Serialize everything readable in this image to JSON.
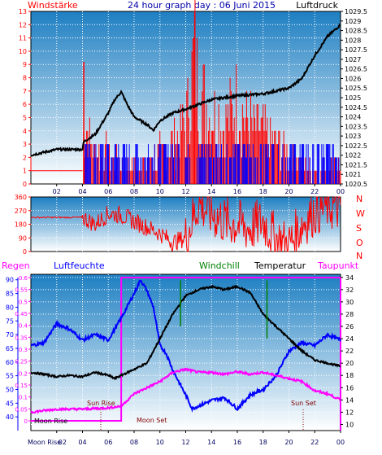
{
  "header": {
    "left_label": "Windstärke",
    "title": "24 hour graph day : 06 Juni 2015",
    "right_label": "Luftdruck"
  },
  "colors": {
    "wind": "#ff0000",
    "pressure": "#000000",
    "humidity": "#0000ff",
    "windchill": "#008000",
    "temperature": "#000000",
    "dewpoint": "#ff00ff",
    "rain": "#ff00ff",
    "frame": "#000000",
    "gradient_top": "#1e7fc2",
    "gradient_bottom": "#ffffff"
  },
  "panel1": {
    "time_ticks": [
      "02",
      "04",
      "06",
      "08",
      "10",
      "12",
      "14",
      "16",
      "18",
      "20",
      "22",
      "00"
    ],
    "left_ticks": [
      "0",
      "1",
      "2",
      "3",
      "4",
      "5",
      "6",
      "7",
      "8",
      "9",
      "10",
      "11",
      "12",
      "13"
    ],
    "right_ticks": [
      "1020.5",
      "1021",
      "1021.5",
      "1022",
      "1022.5",
      "1023",
      "1023.5",
      "1024",
      "1024.5",
      "1025",
      "1025.5",
      "1026",
      "1026.5",
      "1027",
      "1027.5",
      "1028",
      "1028.5",
      "1029",
      "1029.5"
    ]
  },
  "panel2": {
    "left_ticks": [
      "0",
      "90",
      "180",
      "270",
      "360"
    ],
    "right_letters": [
      "N",
      "W",
      "S",
      "O",
      "N"
    ]
  },
  "panel3": {
    "labels": {
      "rain": "Regen",
      "humidity": "Luftfeuchte",
      "windchill": "Windchill",
      "temperature": "Temperatur",
      "dewpoint": "Taupunkt"
    },
    "humidity_ticks": [
      "40",
      "45",
      "50",
      "55",
      "60",
      "65",
      "70",
      "75",
      "80",
      "85",
      "90"
    ],
    "rain_ticks": [
      "0",
      "0.05",
      "0.1",
      "0.15",
      "0.2",
      "0.25",
      "0.3",
      "0.35",
      "0.4",
      "0.45",
      "0.5",
      "0.55",
      "0.6"
    ],
    "temp_ticks": [
      "10",
      "12",
      "14",
      "16",
      "18",
      "20",
      "22",
      "24",
      "26",
      "28",
      "30",
      "32",
      "34"
    ],
    "time_ticks": [
      "02",
      "04",
      "06",
      "08",
      "10",
      "12",
      "14",
      "16",
      "18",
      "20",
      "22",
      "00"
    ],
    "annotations": {
      "moon_rise": "Moon Rise",
      "sun_rise": "Sun Rise",
      "moon_set": "Moon Set",
      "sun_set": "Sun Set",
      "moon_rise_axis": "Moon Rise"
    }
  },
  "chart_data": [
    {
      "type": "line",
      "title": "24 hour graph day : 06 Juni 2015",
      "ylabel": "Windstärke",
      "y2label": "Luftdruck",
      "x_range": [
        0,
        24
      ],
      "ylim": [
        0,
        13
      ],
      "y2lim": [
        1020.5,
        1029.5
      ],
      "series": [
        {
          "name": "Luftdruck",
          "axis": "right",
          "x": [
            0,
            2,
            4,
            4.1,
            5,
            6,
            6.5,
            7,
            7.5,
            8,
            9,
            9.5,
            10,
            11,
            12,
            14,
            16,
            18,
            20,
            21,
            22,
            23,
            24
          ],
          "values": [
            1022,
            1022.3,
            1022.3,
            1022.7,
            1023.1,
            1024.2,
            1024.9,
            1025.3,
            1024.6,
            1024.0,
            1023.6,
            1023.3,
            1023.8,
            1024.2,
            1024.4,
            1024.9,
            1025.1,
            1025.2,
            1025.5,
            1026.0,
            1027.2,
            1028.2,
            1028.8
          ]
        },
        {
          "name": "Windstärke",
          "type": "bar",
          "axis": "left",
          "x": [
            0,
            2,
            4,
            4.1,
            5,
            6,
            7,
            8,
            9,
            10,
            11,
            12,
            12.7,
            13,
            14,
            15,
            16,
            17,
            18,
            19,
            20,
            21,
            22,
            23
          ],
          "values": [
            0,
            0,
            0,
            6,
            3,
            3,
            2,
            2,
            2,
            3,
            4,
            6,
            13,
            9,
            7,
            6,
            8,
            6,
            5,
            4,
            3,
            2,
            1,
            2
          ]
        }
      ]
    },
    {
      "type": "line",
      "title": "",
      "ylabel": "",
      "x_range": [
        0,
        24
      ],
      "ylim": [
        0,
        360
      ],
      "series": [
        {
          "name": "",
          "x": [
            0,
            2,
            4,
            5,
            6,
            7,
            8,
            9,
            10,
            11,
            12,
            13,
            14,
            15,
            16,
            17,
            18,
            19,
            20,
            21,
            22,
            23,
            24
          ],
          "values": [
            225,
            225,
            225,
            180,
            250,
            240,
            200,
            160,
            120,
            60,
            90,
            320,
            250,
            200,
            180,
            150,
            200,
            80,
            40,
            180,
            270,
            300,
            290
          ]
        }
      ]
    },
    {
      "type": "line",
      "title": "",
      "x_range": [
        0,
        24
      ],
      "ylim": [
        40,
        90
      ],
      "y2lim": [
        10,
        34
      ],
      "series": [
        {
          "name": "Luftfeuchte",
          "axis": "left",
          "x": [
            0,
            1,
            2,
            3,
            4,
            5,
            6,
            6.5,
            7,
            8,
            8.5,
            9,
            9.5,
            10,
            10.5,
            11,
            12,
            12.5,
            13,
            14,
            15,
            16,
            17,
            18,
            19,
            20,
            21,
            22,
            23,
            24
          ],
          "values": [
            66,
            67,
            74,
            72,
            68,
            70,
            68,
            72,
            76,
            85,
            90,
            86,
            80,
            66,
            63,
            57,
            48,
            43,
            44,
            46,
            47,
            43,
            48,
            50,
            55,
            64,
            67,
            66,
            70,
            68
          ]
        },
        {
          "name": "Temperatur",
          "axis": "right",
          "x": [
            0,
            1,
            2,
            3,
            4,
            5,
            6,
            6.5,
            7,
            8,
            9,
            10,
            11,
            12,
            13,
            14,
            15,
            16,
            17,
            18,
            19,
            20,
            21,
            22,
            23,
            24
          ],
          "values": [
            18.5,
            18.2,
            17.8,
            18.0,
            17.8,
            18.5,
            18.0,
            17.5,
            18.0,
            19,
            20,
            24,
            28,
            31,
            32,
            32.5,
            32,
            32.5,
            31.5,
            28,
            26,
            24,
            22,
            20.5,
            20,
            19.5
          ]
        },
        {
          "name": "Windchill",
          "axis": "right",
          "x": [
            11.6,
            11.6,
            18.3,
            18.3
          ],
          "values": [
            33.5,
            26,
            33.5,
            24
          ]
        },
        {
          "name": "Taupunkt",
          "axis": "right",
          "x": [
            0,
            2,
            4,
            6,
            7,
            8,
            9,
            10,
            11,
            12,
            13,
            14,
            15,
            16,
            17,
            18,
            19,
            20,
            21,
            22,
            23,
            24
          ],
          "values": [
            12,
            12.5,
            12.5,
            12.7,
            13,
            15,
            16,
            17,
            18.5,
            19,
            18.5,
            18.5,
            18.2,
            18.6,
            18.2,
            18.5,
            18,
            17.5,
            17,
            15.5,
            15,
            14
          ]
        },
        {
          "name": "Regen",
          "axis": "left",
          "x": [
            0,
            6.99,
            7,
            24
          ],
          "values": [
            0.6,
            0.6,
            0.6,
            0.6
          ]
        }
      ]
    }
  ]
}
